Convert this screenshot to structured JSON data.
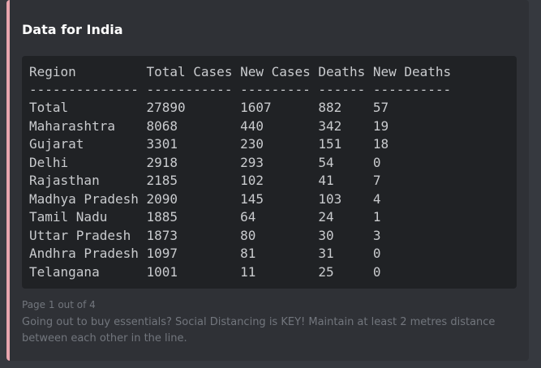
{
  "embed": {
    "title": "Data for India",
    "table": {
      "header": [
        "Region",
        "Total Cases",
        "New Cases",
        "Deaths",
        "New Deaths"
      ],
      "separator": [
        "--------------",
        "-----------",
        "---------",
        "------",
        "----------"
      ],
      "rows": [
        [
          "Total",
          27890,
          1607,
          882,
          57
        ],
        [
          "Maharashtra",
          8068,
          440,
          342,
          19
        ],
        [
          "Gujarat",
          3301,
          230,
          151,
          18
        ],
        [
          "Delhi",
          2918,
          293,
          54,
          0
        ],
        [
          "Rajasthan",
          2185,
          102,
          41,
          7
        ],
        [
          "Madhya Pradesh",
          2090,
          145,
          103,
          4
        ],
        [
          "Tamil Nadu",
          1885,
          64,
          24,
          1
        ],
        [
          "Uttar Pradesh",
          1873,
          80,
          30,
          3
        ],
        [
          "Andhra Pradesh",
          1097,
          81,
          31,
          0
        ],
        [
          "Telangana",
          1001,
          11,
          25,
          0
        ]
      ]
    },
    "footer": "Page 1 out of 4",
    "description": "Going out to buy essentials? Social Distancing is KEY! Maintain at least 2 metres distance between each other in the line."
  }
}
